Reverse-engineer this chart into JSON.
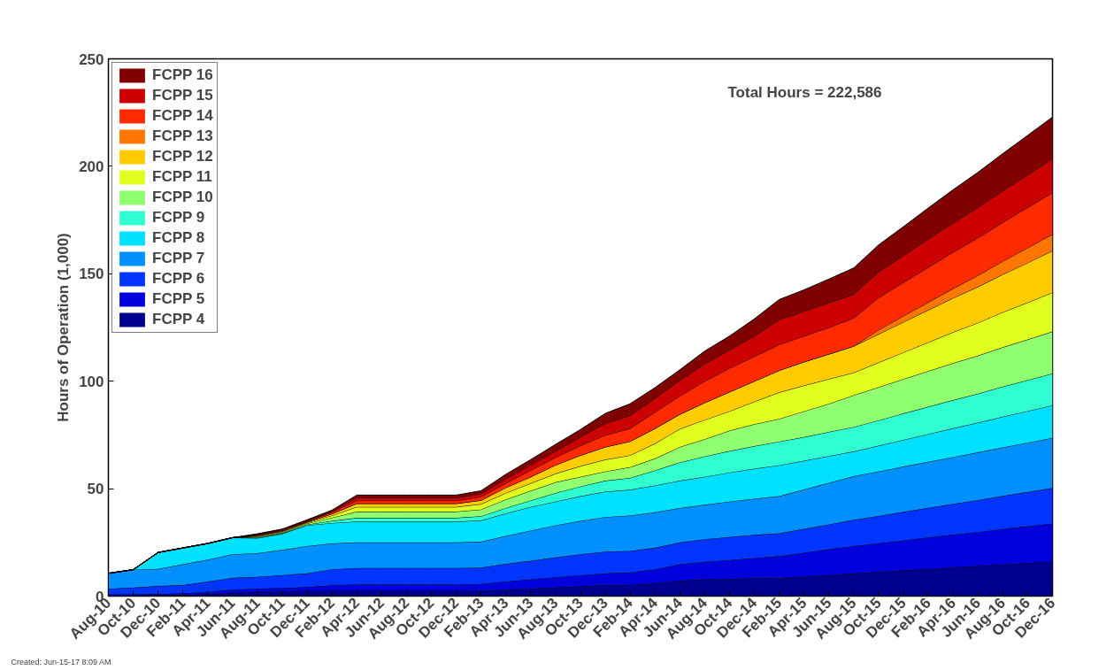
{
  "chart_data": {
    "type": "area",
    "stacked": true,
    "ylabel": "Hours of Operation (1,000)",
    "annotations": [
      "Total Hours = 222,586",
      "Created: Jun-15-17  8:09 AM"
    ],
    "categories": [
      "Aug-10",
      "Oct-10",
      "Dec-10",
      "Feb-11",
      "Apr-11",
      "Jun-11",
      "Aug-11",
      "Oct-11",
      "Dec-11",
      "Feb-12",
      "Apr-12",
      "Jun-12",
      "Aug-12",
      "Oct-12",
      "Dec-12",
      "Feb-13",
      "Apr-13",
      "Jun-13",
      "Aug-13",
      "Oct-13",
      "Dec-13",
      "Feb-14",
      "Apr-14",
      "Jun-14",
      "Aug-14",
      "Oct-14",
      "Dec-14",
      "Feb-15",
      "Apr-15",
      "Jun-15",
      "Aug-15",
      "Oct-15",
      "Dec-15",
      "Feb-16",
      "Apr-16",
      "Jun-16",
      "Aug-16",
      "Oct-16",
      "Dec-16"
    ],
    "ylim": [
      0,
      250
    ],
    "yticks": [
      0,
      50,
      100,
      150,
      200,
      250
    ],
    "grid": false,
    "legend": "top left",
    "series": [
      {
        "name": "FCPP 4",
        "color": "#00008f",
        "values": [
          0.3,
          0.3,
          0.4,
          0.5,
          1,
          1.5,
          2,
          2.3,
          2.5,
          2.5,
          2.5,
          2.5,
          2.5,
          2.5,
          2.5,
          2.6,
          3,
          3.5,
          4,
          4.6,
          5.1,
          5.3,
          6,
          7.2,
          7.8,
          8,
          8.3,
          8.5,
          9.2,
          9.9,
          10.6,
          11.3,
          12.0,
          12.7,
          13.4,
          14.0,
          14.7,
          15.4,
          16.1
        ]
      },
      {
        "name": "FCPP 5",
        "color": "#0000dd",
        "values": [
          0.5,
          0.5,
          0.6,
          0.8,
          1,
          1.5,
          1.5,
          1.5,
          1.7,
          2.5,
          3,
          3,
          3,
          3,
          3,
          3.1,
          3.8,
          4.3,
          4.8,
          5.1,
          5.5,
          5.7,
          6.5,
          7.6,
          8.2,
          8.8,
          9.4,
          10.1,
          11,
          11.9,
          12.7,
          13.3,
          13.9,
          14.6,
          15.2,
          15.8,
          16.5,
          17.1,
          17.7
        ]
      },
      {
        "name": "FCPP 6",
        "color": "#0035ff",
        "values": [
          2.6,
          3.2,
          3.7,
          3.8,
          4.8,
          5.5,
          5.5,
          6,
          6.4,
          7.5,
          7.6,
          7.6,
          7.6,
          7.6,
          7.6,
          7.6,
          8.2,
          8.7,
          9.2,
          9.8,
          10.1,
          10,
          10,
          10.2,
          10.5,
          10.7,
          10.8,
          10.6,
          11.1,
          11.6,
          12.2,
          12.7,
          13.3,
          13.8,
          14.3,
          14.9,
          15.4,
          16.0,
          16.5
        ]
      },
      {
        "name": "FCPP 7",
        "color": "#0090ff",
        "values": [
          7.2,
          8.3,
          8,
          9.7,
          10.2,
          11,
          11,
          11.7,
          12.7,
          12,
          11.9,
          11.9,
          11.9,
          11.9,
          11.9,
          12,
          13,
          14,
          15,
          15.5,
          16.1,
          16.5,
          16.5,
          16,
          16,
          16.5,
          16.8,
          17.3,
          18.3,
          19.3,
          20.3,
          20.7,
          21.1,
          21.4,
          21.8,
          22.2,
          22.6,
          22.9,
          23.3
        ]
      },
      {
        "name": "FCPP 8",
        "color": "#00e0ff",
        "values": [
          0,
          0,
          7.6,
          7.6,
          7.5,
          7.7,
          7,
          7.5,
          9.7,
          9.5,
          9.7,
          9.7,
          9.7,
          9.7,
          9.7,
          9.9,
          10.5,
          11,
          11,
          11.5,
          11.8,
          12,
          12.5,
          12.7,
          13,
          13.5,
          14,
          14.4,
          13.4,
          12.5,
          11.5,
          12.0,
          12.4,
          12.9,
          13.4,
          13.8,
          14.3,
          14.7,
          15.2
        ]
      },
      {
        "name": "FCPP 9",
        "color": "#2fffd0",
        "values": [
          0,
          0,
          0,
          0,
          0,
          0,
          0.3,
          0.3,
          0.3,
          1,
          1.7,
          1.7,
          1.7,
          1.7,
          1.7,
          2,
          2.5,
          3,
          4,
          4.5,
          5.1,
          5.5,
          7,
          8.5,
          9.5,
          10,
          10.5,
          11,
          11,
          11.2,
          11.4,
          11.8,
          12.3,
          12.7,
          13.1,
          13.5,
          14.0,
          14.4,
          14.8
        ]
      },
      {
        "name": "FCPP 10",
        "color": "#90ff70",
        "values": [
          0,
          0,
          0,
          0,
          0,
          0,
          0.3,
          0.4,
          0.5,
          1.5,
          2.9,
          2.9,
          2.9,
          2.9,
          2.9,
          3.1,
          4,
          4.5,
          5,
          4.5,
          4.3,
          5,
          5.5,
          7.2,
          8,
          9.5,
          10.2,
          10.6,
          12,
          13.1,
          14.8,
          15.4,
          16.0,
          16.6,
          17.2,
          17.7,
          18.3,
          18.9,
          19.5
        ]
      },
      {
        "name": "FCPP 11",
        "color": "#e0ff1f",
        "values": [
          0,
          0,
          0,
          0,
          0,
          0,
          0.3,
          0.3,
          0.4,
          1,
          2.2,
          2.2,
          2.2,
          2.2,
          2.2,
          2.5,
          3,
          3.5,
          4,
          5,
          5.5,
          5.5,
          7,
          8.4,
          9,
          9,
          10.5,
          12.3,
          12,
          11.5,
          10.5,
          11.5,
          12.4,
          13.4,
          14.4,
          15.3,
          16.3,
          17.2,
          18.2
        ]
      },
      {
        "name": "FCPP 12",
        "color": "#ffcc00",
        "values": [
          0,
          0,
          0,
          0,
          0,
          0,
          0.3,
          0.3,
          0.3,
          0.8,
          1.6,
          1.6,
          1.6,
          1.6,
          1.6,
          1.8,
          2.5,
          3,
          4,
          5,
          5.9,
          6.5,
          7,
          6.8,
          8,
          9,
          9.5,
          10.2,
          11,
          11.6,
          12.3,
          13.2,
          14.1,
          15.0,
          15.9,
          16.7,
          17.6,
          18.5,
          19.4
        ]
      },
      {
        "name": "FCPP 13",
        "color": "#ff7700",
        "values": [
          0,
          0,
          0,
          0,
          0,
          0,
          0,
          0,
          0,
          0,
          0,
          0,
          0,
          0,
          0,
          0,
          0,
          0,
          0,
          0,
          0,
          0,
          0,
          0,
          0,
          0,
          0,
          0,
          0,
          0,
          0,
          2.0,
          2.8,
          3.6,
          4.4,
          5.3,
          6.1,
          6.9,
          7.7
        ]
      },
      {
        "name": "FCPP 14",
        "color": "#ff2a00",
        "values": [
          0,
          0,
          0,
          0,
          0,
          0,
          0.3,
          0.3,
          0.3,
          0.7,
          1.3,
          1.3,
          1.3,
          1.3,
          1.3,
          1.6,
          2,
          3,
          3.5,
          4.5,
          5.5,
          6,
          7.5,
          8.5,
          10,
          11,
          11.5,
          12,
          12,
          12.4,
          13.1,
          15.0,
          15.6,
          16.3,
          16.9,
          17.5,
          18.1,
          18.8,
          19.4
        ]
      },
      {
        "name": "FCPP 15",
        "color": "#cc0000",
        "values": [
          0,
          0,
          0,
          0,
          0,
          0,
          0.2,
          0.3,
          0.3,
          0.5,
          1.3,
          1.3,
          1.3,
          1.3,
          1.3,
          1.4,
          2,
          2.5,
          3,
          4,
          5.5,
          6,
          6.5,
          7.2,
          8,
          8.5,
          9.5,
          11.6,
          11.5,
          11.5,
          11,
          12.0,
          12.5,
          13.1,
          13.6,
          14.1,
          14.6,
          15.2,
          15.7
        ]
      },
      {
        "name": "FCPP 16",
        "color": "#800000",
        "values": [
          0,
          0,
          0,
          0,
          0,
          0,
          0.3,
          0.3,
          0.4,
          0.5,
          1.3,
          1.3,
          1.3,
          1.3,
          1.3,
          1.4,
          2.2,
          2.5,
          3.1,
          3.5,
          4.6,
          5.5,
          5,
          5,
          6,
          6.5,
          8,
          9.4,
          10,
          11,
          12.3,
          12.5,
          13.5,
          14.5,
          15.5,
          16.4,
          17.4,
          18.4,
          19.4
        ]
      }
    ]
  }
}
